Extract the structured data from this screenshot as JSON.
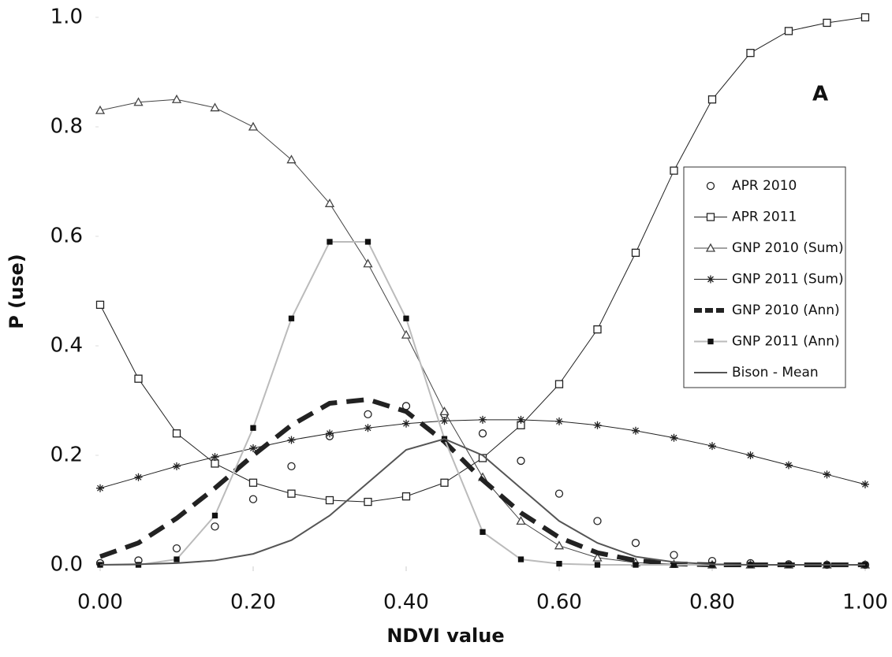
{
  "chart_data": {
    "type": "line",
    "annotation": "A",
    "x_label": "NDVI value",
    "y_label": "P (use)",
    "x": [
      0,
      0.05,
      0.1,
      0.15,
      0.2,
      0.25,
      0.3,
      0.35,
      0.4,
      0.45,
      0.5,
      0.55,
      0.6,
      0.65,
      0.7,
      0.75,
      0.8,
      0.85,
      0.9,
      0.95,
      1.0
    ],
    "xlim": [
      0,
      1
    ],
    "ylim": [
      0,
      1
    ],
    "xticks": [
      {
        "value": 0,
        "label": "0.00"
      },
      {
        "value": 0.2,
        "label": "0.20"
      },
      {
        "value": 0.4,
        "label": "0.40"
      },
      {
        "value": 0.6,
        "label": "0.60"
      },
      {
        "value": 0.8,
        "label": "0.80"
      },
      {
        "value": 1,
        "label": "1.00"
      }
    ],
    "yticks": [
      {
        "value": 0,
        "label": "0.0"
      },
      {
        "value": 0.2,
        "label": "0.2"
      },
      {
        "value": 0.4,
        "label": "0.4"
      },
      {
        "value": 0.6,
        "label": "0.6"
      },
      {
        "value": 0.8,
        "label": "0.8"
      },
      {
        "value": 1,
        "label": "1.0"
      }
    ],
    "legend": "right",
    "series": [
      {
        "name": "APR 2010",
        "color": "#222222",
        "marker": "circle",
        "dash": "none",
        "width": 0,
        "values": [
          0.003,
          0.008,
          0.03,
          0.07,
          0.12,
          0.18,
          0.235,
          0.275,
          0.29,
          0.275,
          0.24,
          0.19,
          0.13,
          0.08,
          0.04,
          0.018,
          0.007,
          0.003,
          0.001,
          0,
          0
        ]
      },
      {
        "name": "APR 2011",
        "color": "#222222",
        "marker": "square",
        "dash": "none",
        "width": 1,
        "values": [
          0.475,
          0.34,
          0.24,
          0.185,
          0.15,
          0.13,
          0.118,
          0.115,
          0.125,
          0.15,
          0.195,
          0.255,
          0.33,
          0.43,
          0.57,
          0.72,
          0.85,
          0.935,
          0.975,
          0.99,
          1.0
        ]
      },
      {
        "name": "GNP 2010 (Sum)",
        "color": "#444444",
        "marker": "triangle",
        "dash": "none",
        "width": 1,
        "values": [
          0.83,
          0.845,
          0.85,
          0.835,
          0.8,
          0.74,
          0.66,
          0.55,
          0.42,
          0.28,
          0.16,
          0.08,
          0.035,
          0.013,
          0.004,
          0.001,
          0,
          0,
          0,
          0,
          0
        ]
      },
      {
        "name": "GNP 2011 (Sum)",
        "color": "#222222",
        "marker": "star",
        "dash": "none",
        "width": 1,
        "values": [
          0.14,
          0.16,
          0.18,
          0.197,
          0.213,
          0.228,
          0.24,
          0.25,
          0.258,
          0.263,
          0.265,
          0.265,
          0.262,
          0.255,
          0.245,
          0.232,
          0.217,
          0.2,
          0.182,
          0.165,
          0.147
        ]
      },
      {
        "name": "GNP 2010 (Ann)",
        "color": "#222222",
        "marker": "none",
        "dash": "22,12",
        "width": 6,
        "values": [
          0.015,
          0.04,
          0.085,
          0.14,
          0.2,
          0.255,
          0.295,
          0.302,
          0.28,
          0.225,
          0.155,
          0.095,
          0.05,
          0.022,
          0.008,
          0.002,
          0,
          0,
          0,
          0,
          0
        ]
      },
      {
        "name": "GNP 2011 (Ann)",
        "color": "#bbbbbb",
        "marker": "small-square",
        "dash": "none",
        "width": 2,
        "values": [
          0,
          0,
          0.01,
          0.09,
          0.25,
          0.45,
          0.59,
          0.59,
          0.45,
          0.23,
          0.06,
          0.01,
          0.002,
          0,
          0,
          0,
          0,
          0,
          0,
          0,
          0
        ]
      },
      {
        "name": "Bison - Mean",
        "color": "#555555",
        "marker": "none",
        "dash": "none",
        "width": 2,
        "values": [
          0,
          0.001,
          0.003,
          0.008,
          0.02,
          0.045,
          0.09,
          0.15,
          0.21,
          0.23,
          0.2,
          0.14,
          0.08,
          0.04,
          0.015,
          0.005,
          0.001,
          0,
          0,
          0,
          0
        ]
      }
    ]
  }
}
